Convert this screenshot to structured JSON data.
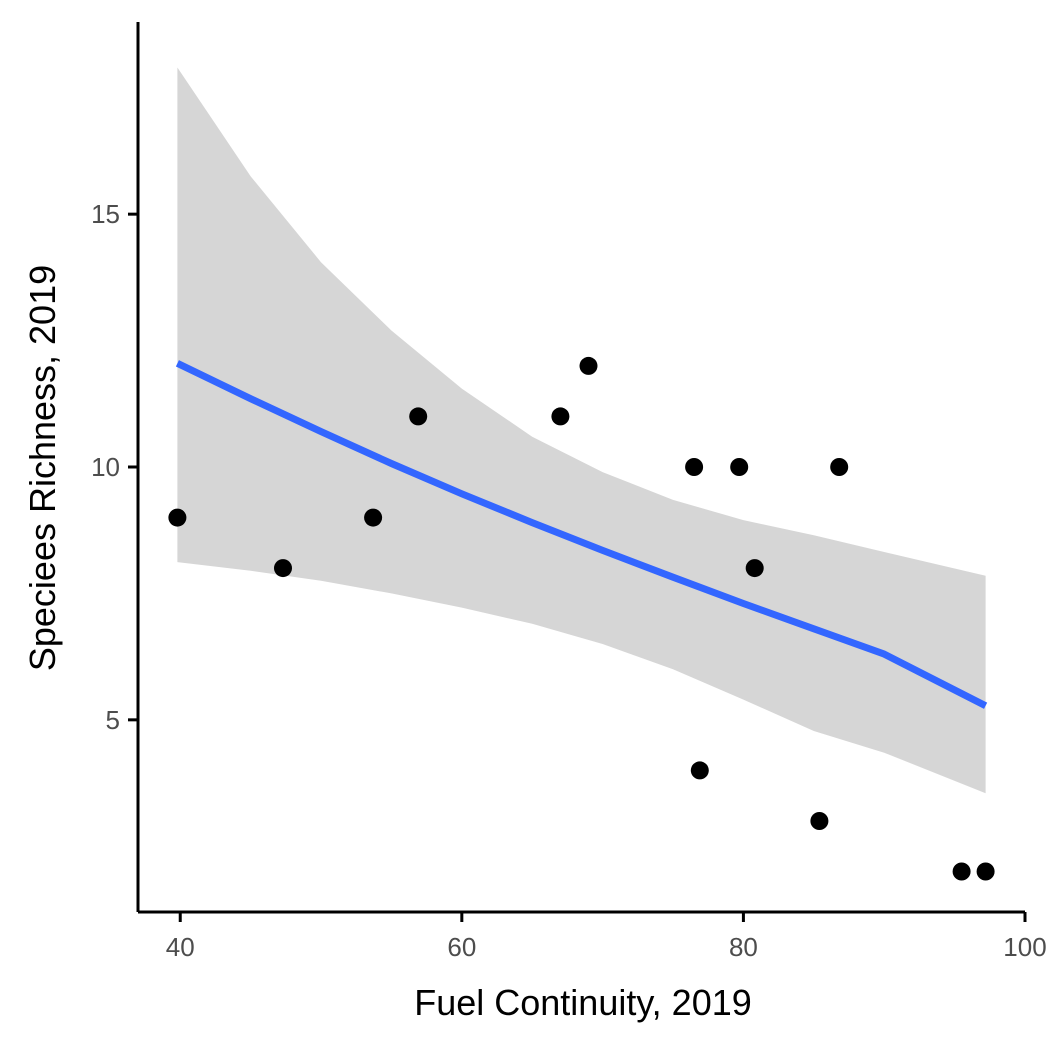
{
  "chart_data": {
    "type": "scatter",
    "title": "",
    "xlabel": "Fuel Continuity, 2019",
    "ylabel": "Speciees Richness, 2019",
    "xlim": [
      37,
      100
    ],
    "ylim": [
      1.2,
      18.8
    ],
    "xticks": [
      40,
      60,
      80,
      100
    ],
    "yticks": [
      5,
      10,
      15
    ],
    "grid": false,
    "legend": "none",
    "points": [
      {
        "x": 39.8,
        "y": 9
      },
      {
        "x": 47.3,
        "y": 8
      },
      {
        "x": 53.7,
        "y": 9
      },
      {
        "x": 56.9,
        "y": 11
      },
      {
        "x": 67.0,
        "y": 11
      },
      {
        "x": 69.0,
        "y": 12
      },
      {
        "x": 76.5,
        "y": 10
      },
      {
        "x": 76.9,
        "y": 4
      },
      {
        "x": 79.7,
        "y": 10
      },
      {
        "x": 80.8,
        "y": 8
      },
      {
        "x": 85.4,
        "y": 3
      },
      {
        "x": 86.8,
        "y": 10
      },
      {
        "x": 95.5,
        "y": 2
      },
      {
        "x": 97.2,
        "y": 2
      }
    ],
    "fit": {
      "x": [
        39.8,
        45,
        50,
        55,
        60,
        65,
        70,
        75,
        80,
        85,
        90,
        97.2
      ],
      "y": [
        12.05,
        11.35,
        10.7,
        10.07,
        9.47,
        8.9,
        8.35,
        7.82,
        7.3,
        6.8,
        6.3,
        5.28
      ],
      "lower": [
        8.12,
        7.95,
        7.75,
        7.5,
        7.22,
        6.9,
        6.5,
        6.0,
        5.4,
        4.78,
        4.35,
        3.55
      ],
      "upper": [
        17.9,
        15.75,
        14.05,
        12.7,
        11.55,
        10.6,
        9.9,
        9.35,
        8.95,
        8.65,
        8.32,
        7.85
      ]
    },
    "colors": {
      "points": "#000000",
      "fit_line": "#3366ff",
      "ribbon": "#d6d6d6",
      "axis": "#000000",
      "tick_label": "#4d4d4d"
    }
  }
}
